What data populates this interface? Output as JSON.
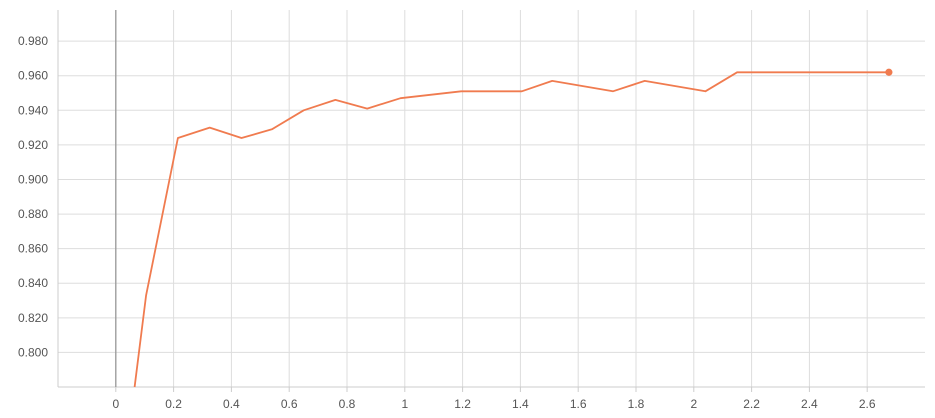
{
  "chart_data": {
    "type": "line",
    "title": "",
    "xlabel": "",
    "ylabel": "",
    "xlim": [
      -0.2,
      2.8
    ],
    "ylim": [
      0.78,
      0.998
    ],
    "x_ticks": [
      0,
      0.2,
      0.4,
      0.6,
      0.8,
      1,
      1.2,
      1.4,
      1.6,
      1.8,
      2,
      2.2,
      2.4,
      2.6
    ],
    "x_tick_labels": [
      "0",
      "0.2",
      "0.4",
      "0.6",
      "0.8",
      "1",
      "1.2",
      "1.4",
      "1.6",
      "1.8",
      "2",
      "2.2",
      "2.4",
      "2.6"
    ],
    "y_ticks": [
      0.8,
      0.82,
      0.84,
      0.86,
      0.88,
      0.9,
      0.92,
      0.94,
      0.96,
      0.98
    ],
    "y_tick_labels": [
      "0.800",
      "0.820",
      "0.840",
      "0.860",
      "0.880",
      "0.900",
      "0.920",
      "0.940",
      "0.960",
      "0.980"
    ],
    "grid": true,
    "zero_line_x": 0,
    "series": [
      {
        "color": "#f07b4f",
        "x": [
          0.065,
          0.105,
          0.215,
          0.325,
          0.435,
          0.54,
          0.65,
          0.76,
          0.87,
          0.985,
          1.195,
          1.405,
          1.51,
          1.72,
          1.83,
          2.04,
          2.15,
          2.675
        ],
        "y": [
          0.78,
          0.833,
          0.924,
          0.93,
          0.924,
          0.929,
          0.94,
          0.946,
          0.941,
          0.947,
          0.951,
          0.951,
          0.957,
          0.951,
          0.957,
          0.951,
          0.962,
          0.962
        ],
        "end_marker": true
      }
    ]
  }
}
